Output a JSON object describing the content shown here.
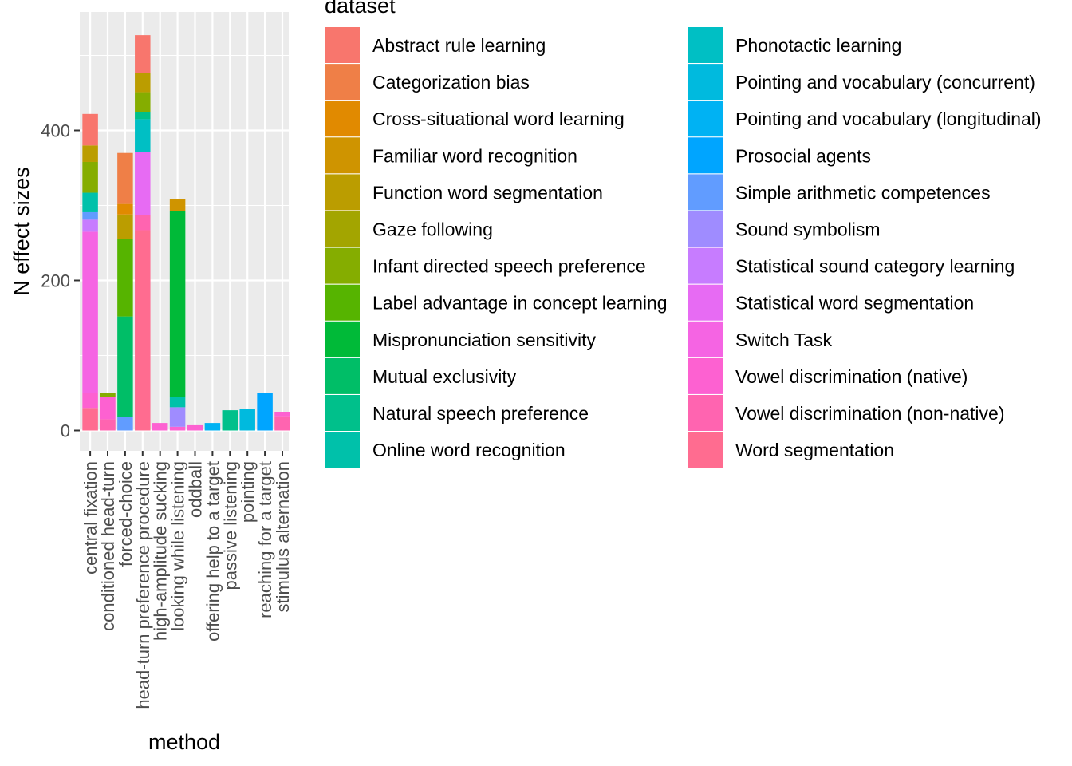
{
  "chart_data": {
    "type": "bar",
    "stacked": true,
    "xlabel": "method",
    "ylabel": "N effect sizes",
    "ylim": [
      0,
      560
    ],
    "yticks": [
      0,
      200,
      400
    ],
    "grid": true,
    "legend_title": "dataset",
    "legend_position": "right",
    "categories": [
      "central fixation",
      "conditioned head-turn",
      "forced-choice",
      "head-turn preference procedure",
      "high-amplitude sucking",
      "looking while listening",
      "oddball",
      "offering help to a target",
      "passive listening",
      "pointing",
      "reaching for a target",
      "stimulus alternation"
    ],
    "series": [
      {
        "name": "Abstract rule learning",
        "color": "#F8766D",
        "values": [
          42,
          0,
          0,
          50,
          0,
          0,
          0,
          0,
          0,
          0,
          0,
          0
        ]
      },
      {
        "name": "Categorization bias",
        "color": "#EF7F47",
        "values": [
          0,
          0,
          68,
          0,
          0,
          0,
          0,
          0,
          0,
          0,
          0,
          0
        ]
      },
      {
        "name": "Cross-situational word learning",
        "color": "#E18A00",
        "values": [
          0,
          0,
          14,
          0,
          0,
          0,
          0,
          0,
          0,
          0,
          0,
          0
        ]
      },
      {
        "name": "Familiar word recognition",
        "color": "#CF9400",
        "values": [
          0,
          0,
          0,
          0,
          0,
          15,
          0,
          0,
          0,
          0,
          0,
          0
        ]
      },
      {
        "name": "Function word segmentation",
        "color": "#BB9D00",
        "values": [
          22,
          0,
          33,
          26,
          0,
          0,
          0,
          0,
          0,
          0,
          0,
          0
        ]
      },
      {
        "name": "Gaze following",
        "color": "#A3A500",
        "values": [
          0,
          0,
          0,
          0,
          0,
          0,
          0,
          0,
          0,
          0,
          0,
          0
        ]
      },
      {
        "name": "Infant directed speech preference",
        "color": "#85AD00",
        "values": [
          41,
          5,
          0,
          26,
          0,
          0,
          0,
          0,
          0,
          0,
          0,
          0
        ]
      },
      {
        "name": "Label advantage in concept learning",
        "color": "#56B400",
        "values": [
          0,
          0,
          103,
          0,
          0,
          0,
          0,
          0,
          0,
          0,
          0,
          0
        ]
      },
      {
        "name": "Mispronunciation sensitivity",
        "color": "#00BA38",
        "values": [
          0,
          0,
          0,
          0,
          0,
          248,
          0,
          0,
          0,
          0,
          0,
          0
        ]
      },
      {
        "name": "Mutual exclusivity",
        "color": "#00BE67",
        "values": [
          0,
          0,
          134,
          0,
          0,
          0,
          0,
          0,
          0,
          0,
          0,
          0
        ]
      },
      {
        "name": "Natural speech preference",
        "color": "#00C08B",
        "values": [
          0,
          0,
          0,
          10,
          0,
          0,
          0,
          0,
          27,
          0,
          0,
          0
        ]
      },
      {
        "name": "Online word recognition",
        "color": "#00C1AA",
        "values": [
          26,
          0,
          0,
          0,
          0,
          14,
          0,
          0,
          0,
          0,
          0,
          0
        ]
      },
      {
        "name": "Phonotactic learning",
        "color": "#00BFC4",
        "values": [
          0,
          0,
          0,
          44,
          0,
          0,
          0,
          0,
          0,
          0,
          0,
          0
        ]
      },
      {
        "name": "Pointing and vocabulary (concurrent)",
        "color": "#00BADE",
        "values": [
          0,
          0,
          0,
          0,
          0,
          0,
          0,
          0,
          0,
          29,
          0,
          0
        ]
      },
      {
        "name": "Pointing and vocabulary (longitudinal)",
        "color": "#00B2F3",
        "values": [
          0,
          0,
          0,
          0,
          0,
          0,
          0,
          10,
          0,
          0,
          0,
          0
        ]
      },
      {
        "name": "Prosocial agents",
        "color": "#00A5FF",
        "values": [
          0,
          0,
          0,
          0,
          0,
          0,
          0,
          0,
          0,
          0,
          50,
          0
        ]
      },
      {
        "name": "Simple arithmetic competences",
        "color": "#619CFF",
        "values": [
          10,
          0,
          18,
          0,
          0,
          0,
          0,
          0,
          0,
          0,
          0,
          0
        ]
      },
      {
        "name": "Sound symbolism",
        "color": "#9F8CFF",
        "values": [
          0,
          0,
          0,
          0,
          0,
          26,
          0,
          0,
          0,
          0,
          0,
          0
        ]
      },
      {
        "name": "Statistical sound category learning",
        "color": "#C77CFF",
        "values": [
          16,
          0,
          0,
          0,
          0,
          0,
          0,
          0,
          0,
          0,
          0,
          0
        ]
      },
      {
        "name": "Statistical word segmentation",
        "color": "#E76BF3",
        "values": [
          0,
          0,
          0,
          84,
          0,
          0,
          0,
          0,
          0,
          0,
          0,
          0
        ]
      },
      {
        "name": "Switch Task",
        "color": "#F564E3",
        "values": [
          215,
          0,
          0,
          0,
          0,
          0,
          0,
          0,
          0,
          0,
          0,
          0
        ]
      },
      {
        "name": "Vowel discrimination (native)",
        "color": "#FD61D1",
        "values": [
          20,
          30,
          0,
          0,
          10,
          5,
          7,
          0,
          0,
          0,
          0,
          6
        ]
      },
      {
        "name": "Vowel discrimination (non-native)",
        "color": "#FF64B0",
        "values": [
          0,
          15,
          0,
          20,
          0,
          0,
          0,
          0,
          0,
          0,
          0,
          19
        ]
      },
      {
        "name": "Word segmentation",
        "color": "#FF6C90",
        "values": [
          30,
          0,
          0,
          267,
          0,
          0,
          0,
          0,
          0,
          0,
          0,
          0
        ]
      }
    ]
  }
}
